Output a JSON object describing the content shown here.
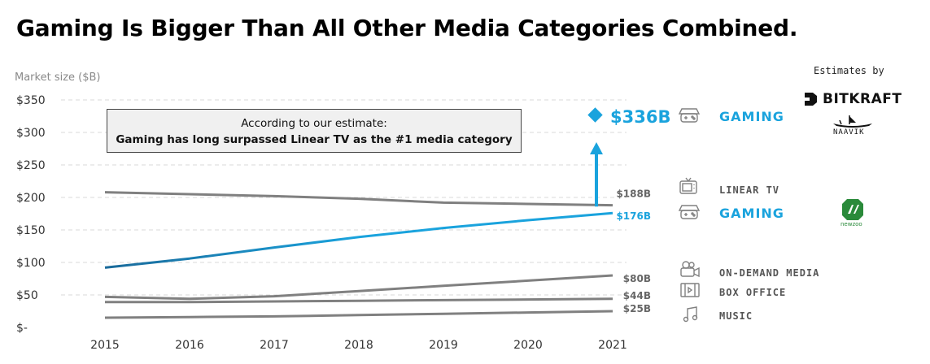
{
  "title": "Gaming Is Bigger Than All Other Media Categories Combined.",
  "callout": {
    "line1": "According to our estimate:",
    "line2": "Gaming has long surpassed Linear TV as the #1 media category"
  },
  "estimates_by": {
    "label": "Estimates by",
    "bitkraft": "BITKRAFT",
    "naavik": "NAAVIK",
    "newzoo": "newzoo"
  },
  "colors": {
    "gaming": "#1aa3dd",
    "gaming_start": "#1a6a9a",
    "other": "#808080",
    "grid": "#d9d9d9"
  },
  "chart_data": {
    "type": "line",
    "title": "Gaming Is Bigger Than All Other Media Categories Combined.",
    "ylabel": "Market size ($B)",
    "xlabel": "",
    "x": [
      "2015",
      "2016",
      "2017",
      "2018",
      "2019",
      "2020",
      "2021"
    ],
    "ylim": [
      0,
      350
    ],
    "yticks": [
      0,
      50,
      100,
      150,
      200,
      250,
      300,
      350
    ],
    "ytick_labels": [
      "$-",
      "$50",
      "$100",
      "$150",
      "$200",
      "$250",
      "$300",
      "$350"
    ],
    "grid": true,
    "series": [
      {
        "name": "LINEAR TV",
        "values": [
          208,
          205,
          202,
          198,
          192,
          190,
          188
        ],
        "end_label": "$188B",
        "color": "#808080"
      },
      {
        "name": "GAMING",
        "values": [
          92,
          106,
          123,
          139,
          153,
          165,
          176
        ],
        "end_label": "$176B",
        "color": "#1aa3dd",
        "source": "newzoo"
      },
      {
        "name": "ON-DEMAND MEDIA",
        "values": [
          47,
          44,
          48,
          56,
          64,
          72,
          80
        ],
        "end_label": "$80B",
        "color": "#808080"
      },
      {
        "name": "BOX OFFICE",
        "values": [
          39,
          39,
          40,
          41,
          42,
          43,
          44
        ],
        "end_label": "$44B",
        "color": "#808080"
      },
      {
        "name": "MUSIC",
        "values": [
          15,
          16,
          17,
          19,
          21,
          23,
          25
        ],
        "end_label": "$25B",
        "color": "#808080"
      }
    ],
    "annotation": {
      "name": "GAMING",
      "year": "2021",
      "value": 336,
      "label": "$336B",
      "source": "BITKRAFT / NAAVIK estimate"
    }
  }
}
